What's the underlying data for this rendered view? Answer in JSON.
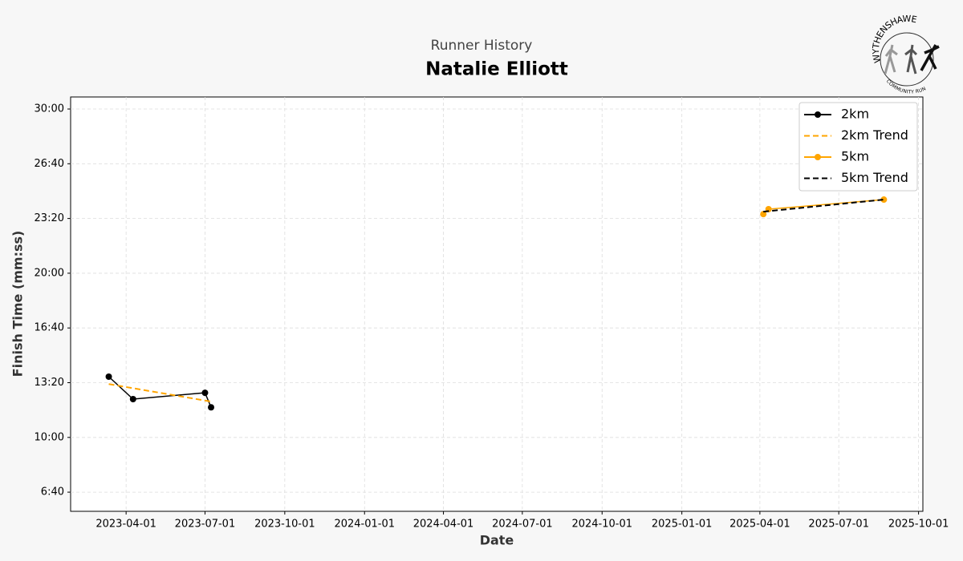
{
  "chart_data": {
    "type": "line",
    "subtitle": "Runner History",
    "title": "Natalie Elliott",
    "x_label": "Date",
    "y_label": "Finish Time (mm:ss)",
    "logo": {
      "top": "WYTHENSHAWE",
      "bottom": "COMMUNITY RUN"
    },
    "xlim": [
      "2023-01-27",
      "2025-10-06"
    ],
    "xticks": [
      "2023-04-01",
      "2023-07-01",
      "2023-10-01",
      "2024-01-01",
      "2024-04-01",
      "2024-07-01",
      "2024-10-01",
      "2025-01-01",
      "2025-04-01",
      "2025-07-01",
      "2025-10-01"
    ],
    "ylim": [
      330,
      1844
    ],
    "yticks": [
      {
        "value": 400,
        "label": "6:40"
      },
      {
        "value": 600,
        "label": "10:00"
      },
      {
        "value": 800,
        "label": "13:20"
      },
      {
        "value": 1000,
        "label": "16:40"
      },
      {
        "value": 1200,
        "label": "20:00"
      },
      {
        "value": 1400,
        "label": "23:20"
      },
      {
        "value": 1600,
        "label": "26:40"
      },
      {
        "value": 1800,
        "label": "30:00"
      }
    ],
    "grid": true,
    "legend": "upper right",
    "series": [
      {
        "name": "2km",
        "color": "#000000",
        "dashed": false,
        "marker": true,
        "x": [
          "2023-03-12",
          "2023-04-09",
          "2023-07-01",
          "2023-07-08"
        ],
        "values": [
          822,
          740,
          763,
          710
        ]
      },
      {
        "name": "2km Trend",
        "color": "#ffa500",
        "dashed": true,
        "marker": false,
        "x": [
          "2023-03-12",
          "2023-07-08"
        ],
        "values": [
          795,
          731
        ]
      },
      {
        "name": "5km",
        "color": "#ffa500",
        "dashed": false,
        "marker": true,
        "x": [
          "2025-04-05",
          "2025-04-11",
          "2025-08-22"
        ],
        "values": [
          1416,
          1434,
          1469
        ]
      },
      {
        "name": "5km Trend",
        "color": "#000000",
        "dashed": true,
        "marker": false,
        "x": [
          "2025-04-05",
          "2025-08-22"
        ],
        "values": [
          1425,
          1469
        ]
      }
    ]
  }
}
